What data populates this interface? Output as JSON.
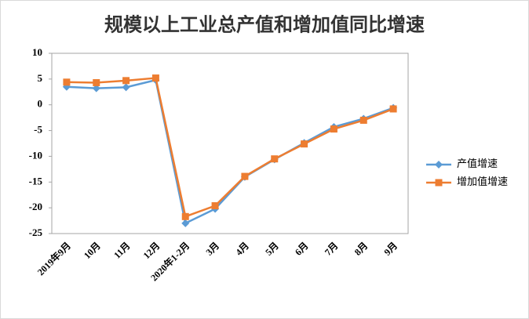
{
  "chart_data": {
    "type": "line",
    "title": "规模以上工业总产值和增加值同比增速",
    "categories": [
      "2019年9月",
      "10月",
      "11月",
      "12月",
      "2020年1-2月",
      "3月",
      "4月",
      "5月",
      "6月",
      "7月",
      "8月",
      "9月"
    ],
    "series": [
      {
        "name": "产值增速",
        "color": "#5b9bd5",
        "marker": "diamond",
        "values": [
          3.5,
          3.2,
          3.4,
          4.8,
          -23,
          -20.2,
          -14,
          -10.6,
          -7.4,
          -4.3,
          -2.7,
          -0.6
        ]
      },
      {
        "name": "增加值增速",
        "color": "#ed7d31",
        "marker": "square",
        "values": [
          4.4,
          4.3,
          4.7,
          5.2,
          -21.7,
          -19.6,
          -13.9,
          -10.5,
          -7.6,
          -4.7,
          -3.0,
          -0.8
        ]
      }
    ],
    "ylim": [
      -25,
      10
    ],
    "yticks": [
      -25,
      -20,
      -15,
      -10,
      -5,
      0,
      5,
      10
    ],
    "grid": false,
    "legend": "right"
  }
}
